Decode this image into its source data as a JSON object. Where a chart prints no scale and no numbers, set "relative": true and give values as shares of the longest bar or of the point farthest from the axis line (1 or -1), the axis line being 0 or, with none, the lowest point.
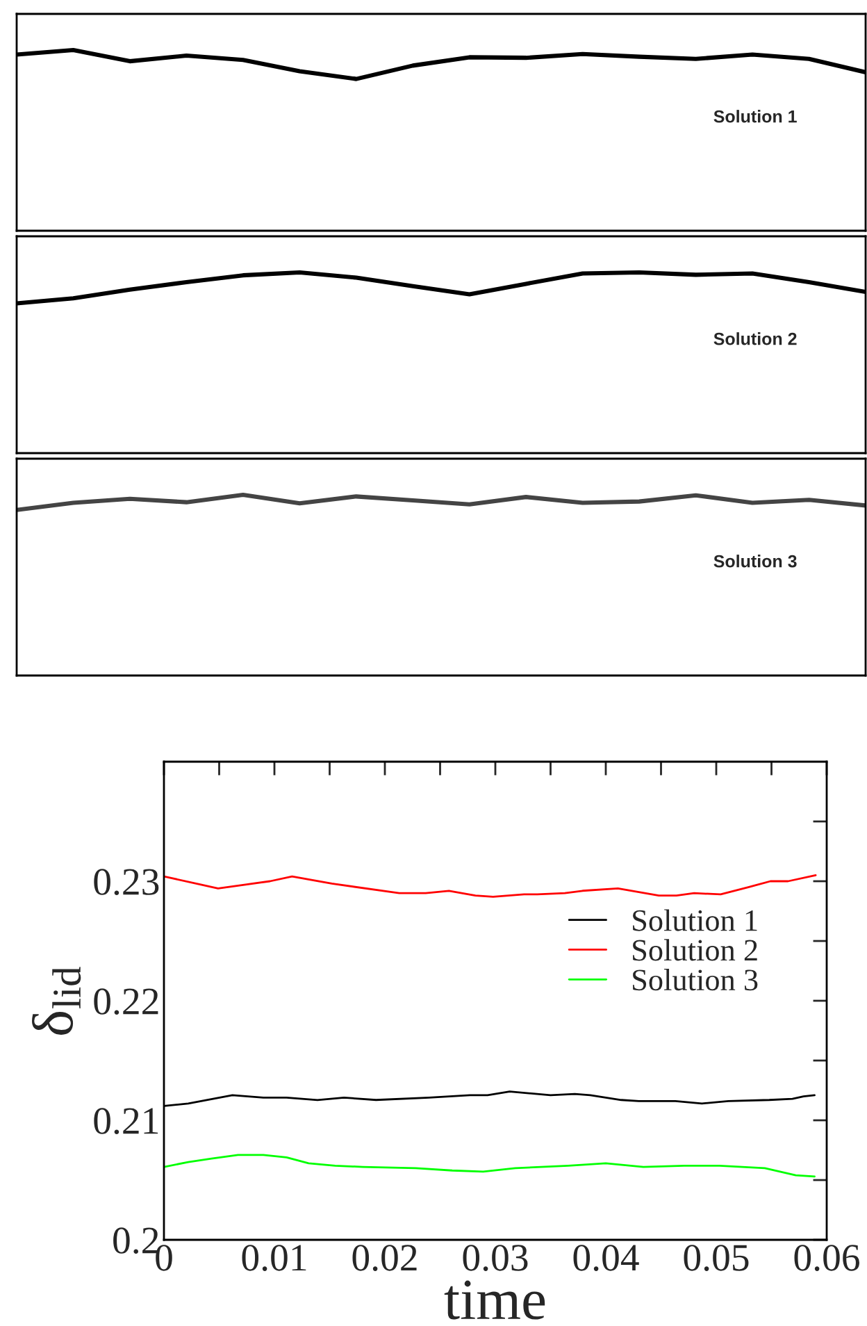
{
  "chart_data": [
    {
      "type": "line",
      "relative": true,
      "categories": [
        null,
        null,
        null,
        null,
        null,
        null,
        null,
        null,
        null,
        null,
        null,
        null,
        null,
        null,
        null,
        null
      ],
      "series": [
        {
          "color": "#000000",
          "values": [
            0.975,
            1,
            0.938,
            0.969,
            0.945,
            0.883,
            0.84,
            0.914,
            0.96,
            0.957,
            0.978,
            0.963,
            0.951,
            0.975,
            0.951,
            0.877
          ]
        }
      ],
      "annotations": [
        "Solution 1"
      ]
    },
    {
      "type": "line",
      "relative": true,
      "categories": [
        null,
        null,
        null,
        null,
        null,
        null,
        null,
        null,
        null,
        null,
        null,
        null,
        null,
        null,
        null,
        null
      ],
      "series": [
        {
          "color": "#000000",
          "values": [
            0.829,
            0.857,
            0.905,
            0.946,
            0.984,
            1,
            0.971,
            0.924,
            0.879,
            0.937,
            0.994,
            1,
            0.987,
            0.994,
            0.946,
            0.892
          ]
        }
      ],
      "annotations": [
        "Solution 2"
      ]
    },
    {
      "type": "line",
      "relative": true,
      "categories": [
        null,
        null,
        null,
        null,
        null,
        null,
        null,
        null,
        null,
        null,
        null,
        null,
        null,
        null,
        null,
        null
      ],
      "series": [
        {
          "color": "#444444",
          "values": [
            0.916,
            0.956,
            0.978,
            0.959,
            1,
            0.953,
            0.991,
            0.969,
            0.947,
            0.988,
            0.956,
            0.963,
            0.997,
            0.956,
            0.972,
            0.941
          ]
        }
      ],
      "annotations": [
        "Solution 3"
      ]
    },
    {
      "type": "line",
      "xlabel": "time",
      "ylabel": "δ$_{lid}$",
      "legend": "right",
      "grid": false,
      "xlim": [
        0,
        0.06
      ],
      "ylim": [
        0.2,
        0.24
      ],
      "xticks": [
        0,
        {
          "value": 0.005,
          "label": null
        },
        0.01,
        {
          "value": 0.015,
          "label": null
        },
        0.02,
        {
          "value": 0.025,
          "label": null
        },
        0.03,
        {
          "value": 0.035,
          "label": null
        },
        0.04,
        {
          "value": 0.045,
          "label": null
        },
        0.05,
        {
          "value": 0.055,
          "label": null
        },
        0.06
      ],
      "yticks": [
        0.2,
        {
          "value": 0.205,
          "label": null
        },
        0.21,
        {
          "value": 0.215,
          "label": null
        },
        0.22,
        {
          "value": 0.225,
          "label": null
        },
        0.23,
        {
          "value": 0.235,
          "label": null
        }
      ],
      "series": [
        {
          "name": "Solution 1",
          "color": "#000000",
          "x": [
            0,
            0.0022,
            0.0062,
            0.009,
            0.0111,
            0.0139,
            0.0163,
            0.0192,
            0.024,
            0.0277,
            0.0293,
            0.0313,
            0.035,
            0.0372,
            0.0386,
            0.0414,
            0.043,
            0.0463,
            0.0487,
            0.0499,
            0.0511,
            0.0548,
            0.0569,
            0.0579,
            0.0589
          ],
          "values": [
            0.2112,
            0.2114,
            0.2121,
            0.2119,
            0.2119,
            0.2117,
            0.2119,
            0.2117,
            0.2119,
            0.2121,
            0.2121,
            0.2124,
            0.2121,
            0.2122,
            0.2121,
            0.2117,
            0.2116,
            0.2116,
            0.2114,
            0.2115,
            0.2116,
            0.2117,
            0.2118,
            0.212,
            0.2121
          ]
        },
        {
          "name": "Solution 2",
          "color": "#ff0000",
          "x": [
            0,
            0.0049,
            0.0096,
            0.0116,
            0.0152,
            0.0213,
            0.0237,
            0.0258,
            0.0282,
            0.0298,
            0.0326,
            0.0338,
            0.0363,
            0.0379,
            0.0411,
            0.0448,
            0.0464,
            0.048,
            0.0504,
            0.0529,
            0.0549,
            0.0565,
            0.059
          ],
          "values": [
            0.2304,
            0.2294,
            0.23,
            0.2304,
            0.2298,
            0.229,
            0.229,
            0.2292,
            0.2288,
            0.2287,
            0.2289,
            0.2289,
            0.229,
            0.2292,
            0.2294,
            0.2288,
            0.2288,
            0.229,
            0.2289,
            0.2295,
            0.23,
            0.23,
            0.2305
          ]
        },
        {
          "name": "Solution 3",
          "color": "#00ff00",
          "x": [
            0,
            0.0022,
            0.0043,
            0.0067,
            0.009,
            0.0111,
            0.0131,
            0.0155,
            0.018,
            0.0228,
            0.0261,
            0.0289,
            0.0318,
            0.0366,
            0.04,
            0.0434,
            0.0471,
            0.0503,
            0.0544,
            0.0572,
            0.0589
          ],
          "values": [
            0.2061,
            0.2065,
            0.2068,
            0.2071,
            0.2071,
            0.2069,
            0.2064,
            0.2062,
            0.2061,
            0.206,
            0.2058,
            0.2057,
            0.206,
            0.2062,
            0.2064,
            0.2061,
            0.2062,
            0.2062,
            0.206,
            0.2054,
            0.2053
          ]
        }
      ]
    }
  ]
}
